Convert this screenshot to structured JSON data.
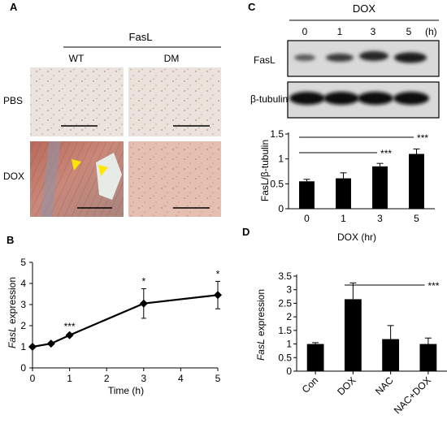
{
  "panels": {
    "A": {
      "letter": "A",
      "header": "FasL",
      "columns": [
        "WT",
        "DM"
      ],
      "rows": [
        "PBS",
        "DOX"
      ]
    },
    "B": {
      "letter": "B"
    },
    "C": {
      "letter": "C",
      "treatment_label": "DOX",
      "lane_labels": [
        "0",
        "1",
        "3",
        "5"
      ],
      "unit_label": "(h)",
      "blot_labels": [
        "FasL",
        "β-tubulin"
      ]
    },
    "D": {
      "letter": "D"
    }
  },
  "colors": {
    "blot_bg": "#d9d9d9",
    "bar_fill": "#000000",
    "arrow": "#ffe600"
  },
  "chart_data": [
    {
      "id": "C",
      "type": "bar",
      "categories": [
        "0",
        "1",
        "3",
        "5"
      ],
      "values": [
        0.55,
        0.61,
        0.85,
        1.1
      ],
      "errors": [
        0.04,
        0.11,
        0.06,
        0.1
      ],
      "xlabel": "DOX (hr)",
      "ylabel": "FasL/β-tubulin",
      "ylim": [
        0,
        1.5
      ],
      "yticks": [
        "0",
        "0.5",
        "1",
        "1.5"
      ],
      "significance": [
        {
          "from": "0",
          "to": "3",
          "label": "***"
        },
        {
          "from": "0",
          "to": "5",
          "label": "***"
        }
      ]
    },
    {
      "id": "B",
      "type": "line",
      "x": [
        0,
        0.5,
        1,
        3,
        5
      ],
      "y": [
        1.0,
        1.15,
        1.55,
        3.05,
        3.45
      ],
      "errors": [
        0.05,
        0.05,
        0.07,
        0.7,
        0.65
      ],
      "annotations": [
        {
          "x": 1,
          "label": "***"
        },
        {
          "x": 3,
          "label": "*"
        },
        {
          "x": 5,
          "label": "*"
        }
      ],
      "xlabel": "Time (h)",
      "ylabel_italic": "FasL",
      "ylabel_rest": " expression",
      "xlim": [
        0,
        5
      ],
      "ylim": [
        0,
        5
      ],
      "xticks": [
        "0",
        "1",
        "2",
        "3",
        "4",
        "5"
      ],
      "yticks": [
        "0",
        "1",
        "2",
        "3",
        "4",
        "5"
      ]
    },
    {
      "id": "D",
      "type": "bar",
      "categories": [
        "Con",
        "DOX",
        "NAC",
        "NAC+DOX"
      ],
      "values": [
        1.0,
        2.65,
        1.18,
        1.0
      ],
      "errors": [
        0.05,
        0.6,
        0.5,
        0.22
      ],
      "ylabel_italic": "FasL",
      "ylabel_rest": " expression",
      "ylim": [
        0,
        3.5
      ],
      "yticks": [
        "0",
        "0.5",
        "1",
        "1.5",
        "2",
        "2.5",
        "3",
        "3.5"
      ],
      "significance": [
        {
          "from": "DOX",
          "to": "NAC+DOX",
          "label": "***"
        }
      ]
    }
  ]
}
